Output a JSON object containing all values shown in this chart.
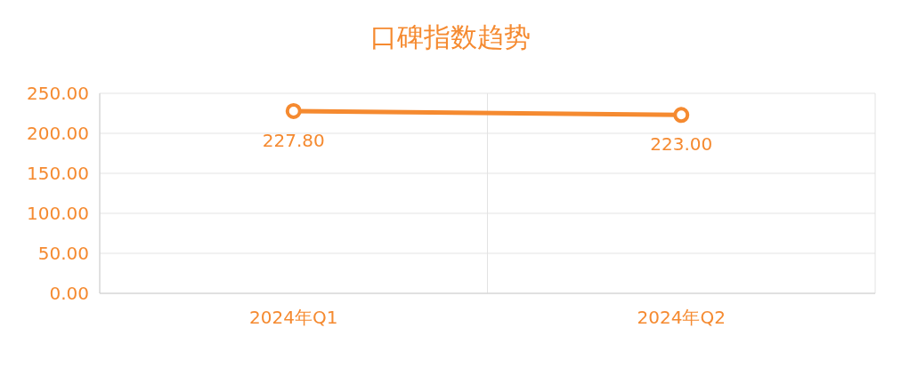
{
  "chart_data": {
    "type": "line",
    "title": "口碑指数趋势",
    "categories": [
      "2024年Q1",
      "2024年Q2"
    ],
    "series": [
      {
        "color": "#f58a30",
        "values": [
          227.8,
          223.0
        ],
        "value_labels": [
          "227.80",
          "223.00"
        ]
      }
    ],
    "ylim": [
      0,
      250
    ],
    "yticks": [
      {
        "value": 0,
        "label": "0.00"
      },
      {
        "value": 50,
        "label": "50.00"
      },
      {
        "value": 100,
        "label": "100.00"
      },
      {
        "value": 150,
        "label": "150.00"
      },
      {
        "value": 200,
        "label": "200.00"
      },
      {
        "value": 250,
        "label": "250.00"
      }
    ],
    "grid": true,
    "marker": "circle",
    "line_style": "solid"
  }
}
